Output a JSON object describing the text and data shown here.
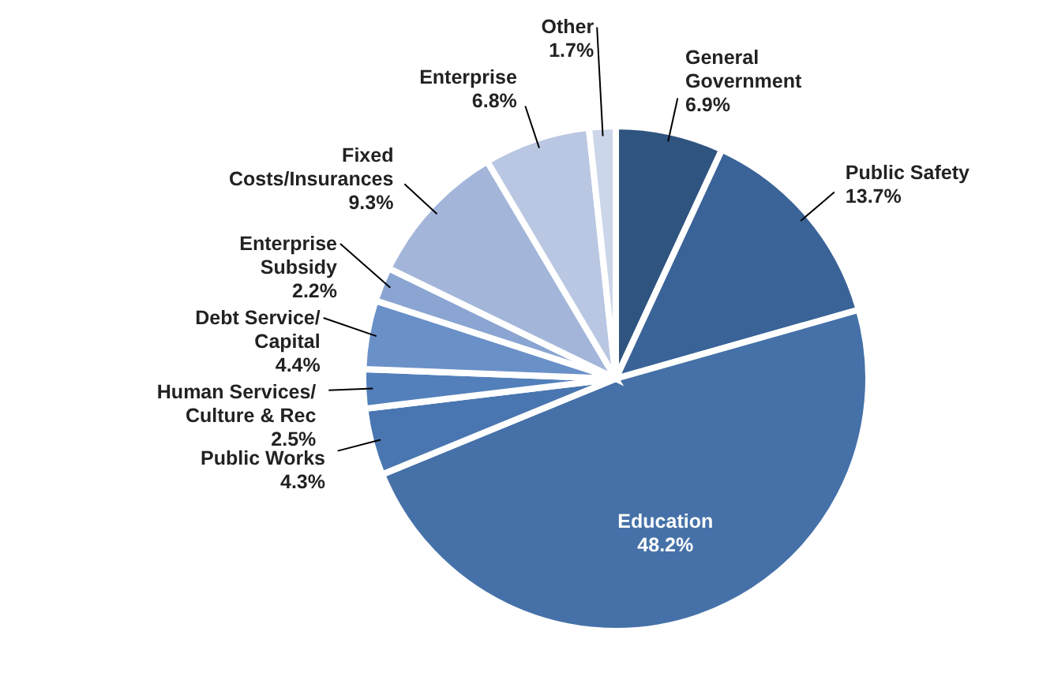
{
  "chart_data": {
    "type": "pie",
    "categories": [
      "General Government",
      "Public Safety",
      "Education",
      "Public Works",
      "Human Services/ Culture & Rec",
      "Debt Service/ Capital",
      "Enterprise Subsidy",
      "Fixed Costs/Insurances",
      "Enterprise",
      "Other"
    ],
    "values": [
      6.9,
      13.7,
      48.2,
      4.3,
      2.5,
      4.4,
      2.2,
      9.3,
      6.8,
      1.7
    ],
    "value_labels": [
      "6.9%",
      "13.7%",
      "48.2%",
      "4.3%",
      "2.5%",
      "4.4%",
      "2.2%",
      "9.3%",
      "6.8%",
      "1.7%"
    ],
    "colors": [
      "#2f5480",
      "#3a6398",
      "#4571a8",
      "#4976b0",
      "#5380bb",
      "#6a90c8",
      "#8aa5d2",
      "#a3b6da",
      "#b9c7e2",
      "#ccd6ea"
    ]
  }
}
